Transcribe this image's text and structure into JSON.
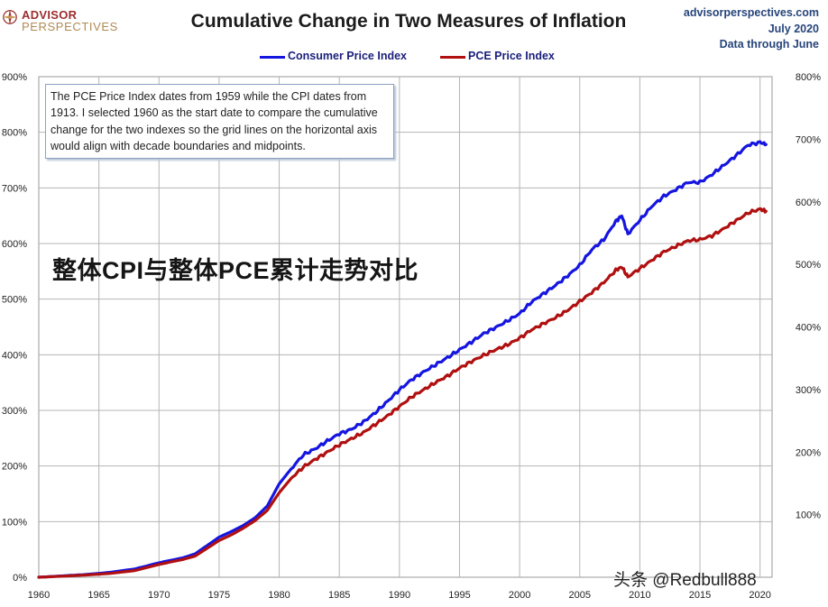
{
  "header": {
    "logo_line1": "ADVISOR",
    "logo_line2": "PERSPECTIVES",
    "title": "Cumulative Change in Two Measures of Inflation",
    "source_site": "advisorperspectives.com",
    "source_date": "July 2020",
    "source_note": "Data through June"
  },
  "note_text": "The PCE Price Index dates from 1959 while the CPI dates from 1913. I selected 1960 as the start date to compare the cumulative change for the two indexes so the grid lines on the horizontal  axis would align with decade boundaries and midpoints.",
  "overlay_text": "整体CPI与整体PCE累计走势对比",
  "watermark": "头条 @Redbull888",
  "chart_data": {
    "type": "line",
    "title": "Cumulative Change in Two Measures of Inflation",
    "xlabel": "",
    "ylabel": "",
    "xlim": [
      1960,
      2021
    ],
    "ylim_left": [
      0,
      900
    ],
    "ylim_right": [
      0,
      800
    ],
    "grid": true,
    "legend_position": "top-center",
    "x_ticks": [
      "1960",
      "1965",
      "1970",
      "1975",
      "1980",
      "1985",
      "1990",
      "1995",
      "2000",
      "2005",
      "2010",
      "2015",
      "2020"
    ],
    "y_ticks_left": [
      "0%",
      "100%",
      "200%",
      "300%",
      "400%",
      "500%",
      "600%",
      "700%",
      "800%",
      "900%"
    ],
    "y_ticks_right": [
      "100%",
      "200%",
      "300%",
      "400%",
      "500%",
      "600%",
      "700%",
      "800%"
    ],
    "x": [
      1960,
      1962,
      1964,
      1966,
      1968,
      1970,
      1972,
      1973,
      1974,
      1975,
      1976,
      1977,
      1978,
      1979,
      1980,
      1981,
      1982,
      1983,
      1984,
      1985,
      1986,
      1987,
      1988,
      1989,
      1990,
      1991,
      1992,
      1993,
      1994,
      1995,
      1996,
      1997,
      1998,
      1999,
      2000,
      2001,
      2002,
      2003,
      2004,
      2005,
      2006,
      2007,
      2008,
      2008.5,
      2009,
      2010,
      2011,
      2012,
      2013,
      2014,
      2015,
      2016,
      2017,
      2018,
      2019,
      2020,
      2020.5
    ],
    "series": [
      {
        "name": "Consumer Price Index",
        "color": "#1515e0",
        "values": [
          0,
          2.5,
          5,
          9,
          15,
          26,
          35,
          42,
          57,
          72,
          82,
          93,
          107,
          128,
          168,
          195,
          220,
          231,
          245,
          258,
          266,
          279,
          296,
          316,
          337,
          355,
          369,
          382,
          395,
          409,
          423,
          438,
          449,
          461,
          474,
          495,
          510,
          525,
          542,
          561,
          589,
          607,
          640,
          650,
          617,
          642,
          667,
          685,
          697,
          710,
          710,
          724,
          741,
          758,
          777,
          782,
          778
        ]
      },
      {
        "name": "PCE Price Index",
        "color": "#b01010",
        "values": [
          0,
          2,
          4,
          7,
          12,
          23,
          32,
          38,
          52,
          66,
          76,
          88,
          102,
          120,
          152,
          178,
          198,
          212,
          225,
          238,
          249,
          260,
          275,
          290,
          307,
          324,
          337,
          350,
          362,
          376,
          388,
          399,
          409,
          418,
          430,
          445,
          456,
          467,
          480,
          496,
          512,
          530,
          552,
          558,
          540,
          555,
          570,
          585,
          595,
          605,
          607,
          614,
          627,
          641,
          655,
          662,
          658
        ]
      }
    ]
  }
}
